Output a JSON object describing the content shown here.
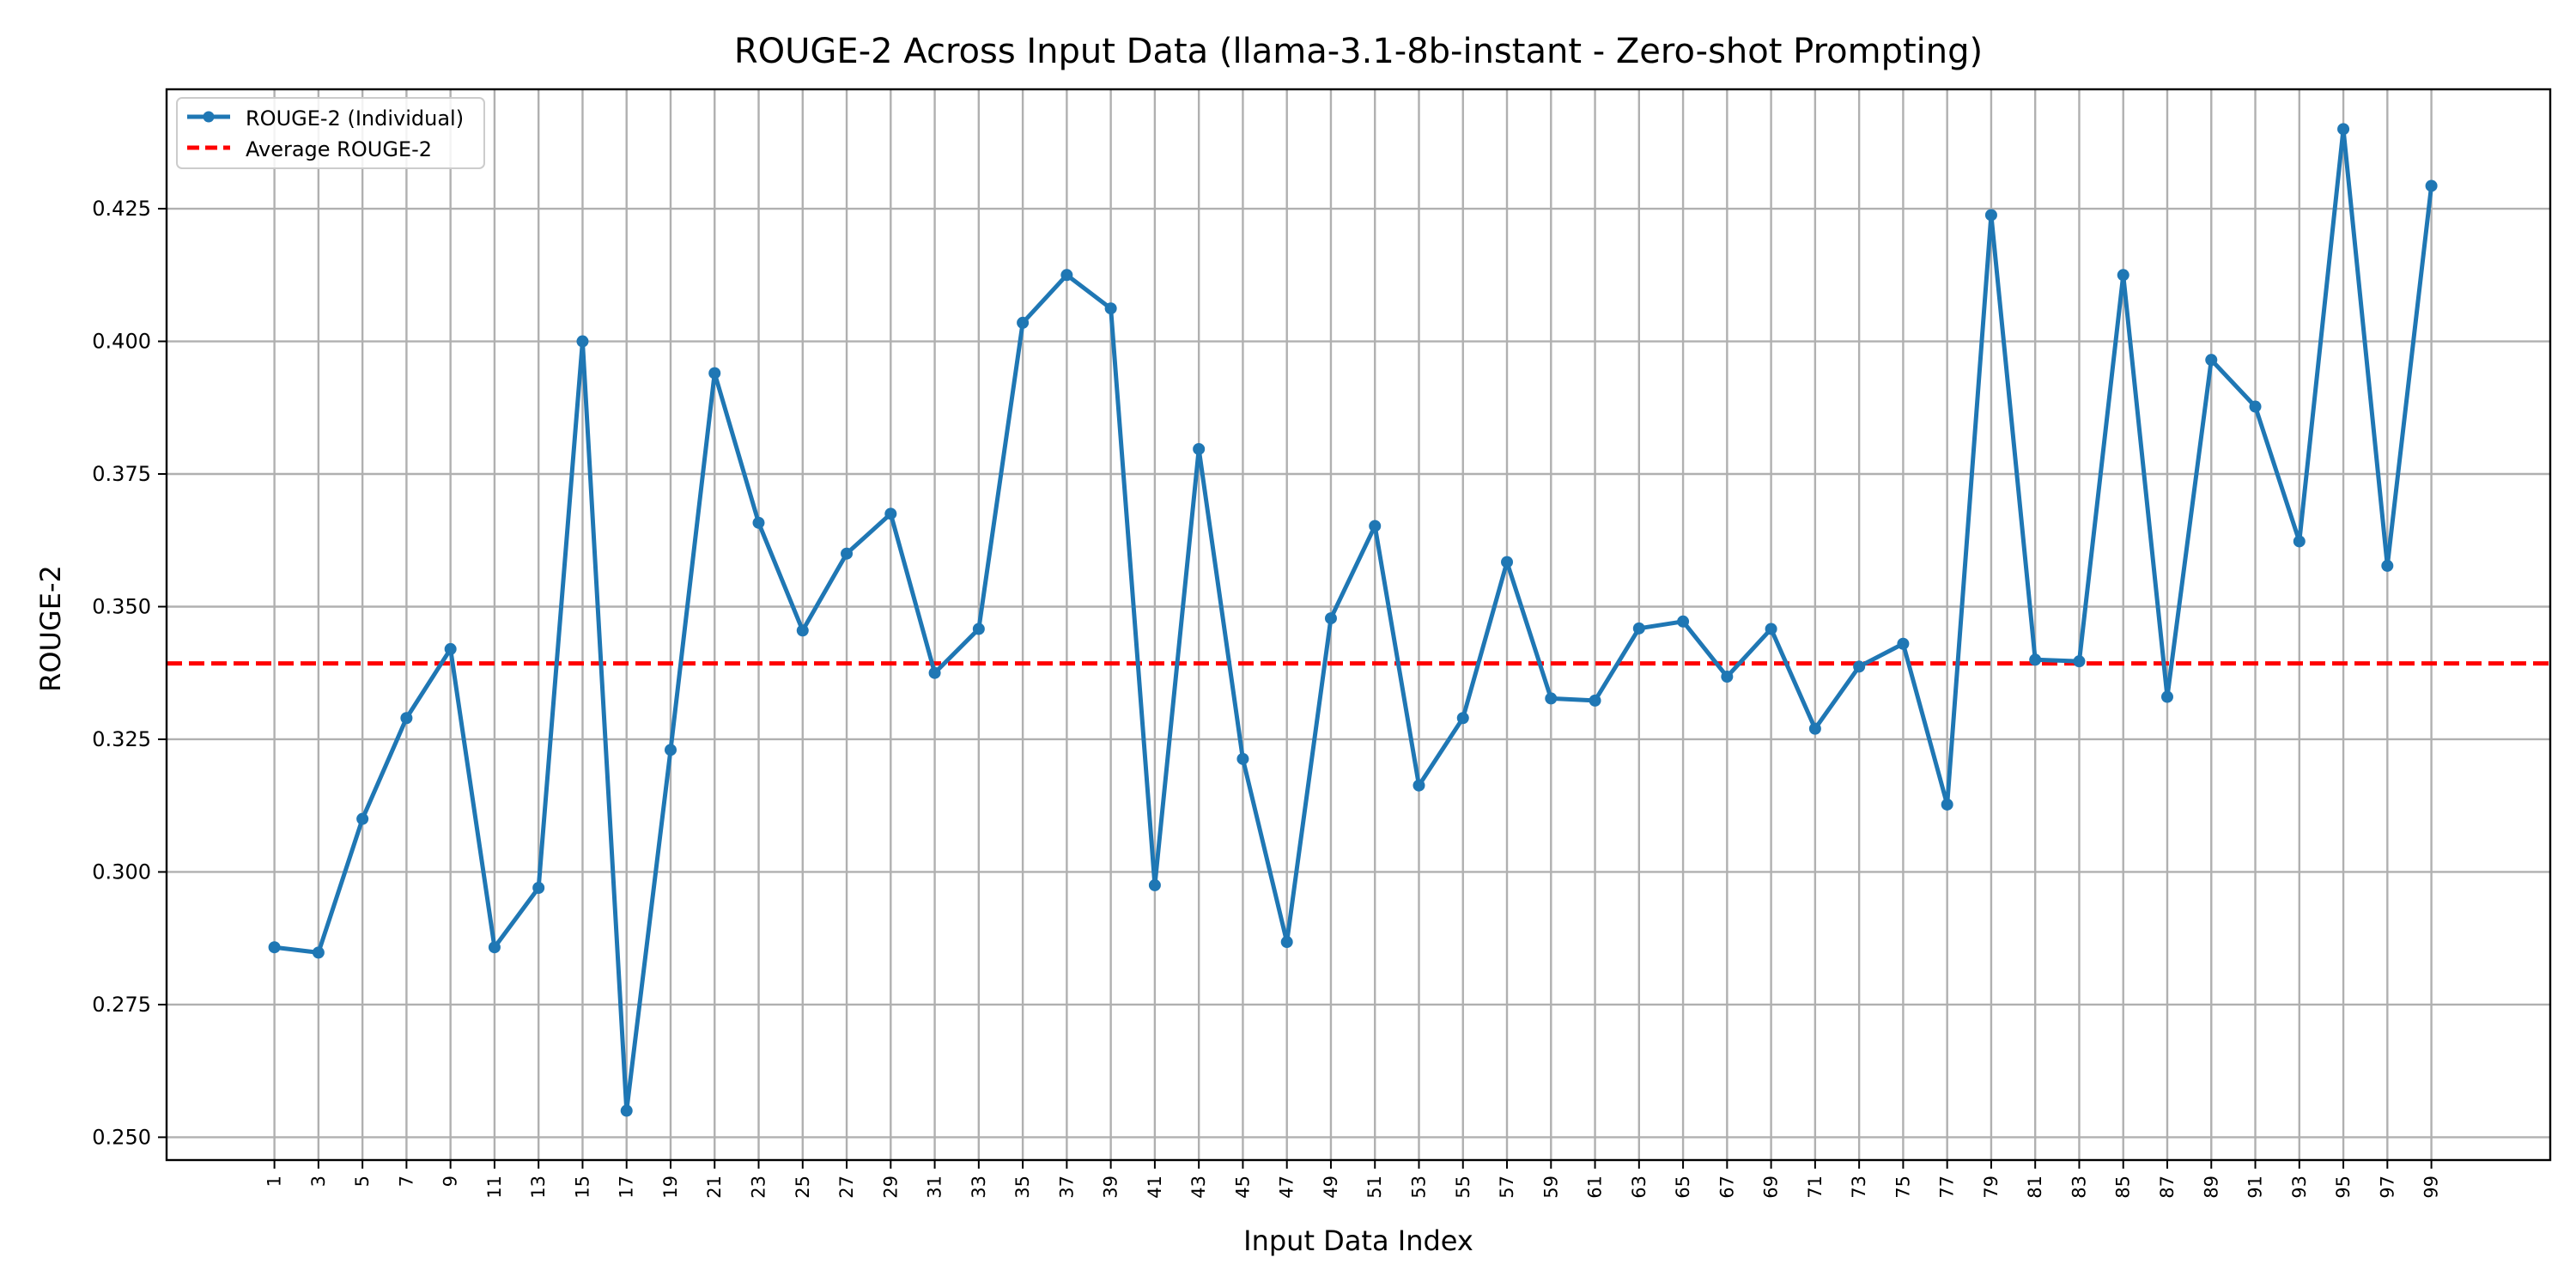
{
  "chart_data": {
    "type": "line",
    "title": "ROUGE-2 Across Input Data (llama-3.1-8b-instant - Zero-shot Prompting)",
    "xlabel": "Input Data Index",
    "ylabel": "ROUGE-2",
    "x": [
      1,
      3,
      5,
      7,
      9,
      11,
      13,
      15,
      17,
      19,
      21,
      23,
      25,
      27,
      29,
      31,
      33,
      35,
      37,
      39,
      41,
      43,
      45,
      47,
      49,
      51,
      53,
      55,
      57,
      59,
      61,
      63,
      65,
      67,
      69,
      71,
      73,
      75,
      77,
      79,
      81,
      83,
      85,
      87,
      89,
      91,
      93,
      95,
      97,
      99
    ],
    "x_tick_labels": [
      "1",
      "3",
      "5",
      "7",
      "9",
      "11",
      "13",
      "15",
      "17",
      "19",
      "21",
      "23",
      "25",
      "27",
      "29",
      "31",
      "33",
      "35",
      "37",
      "39",
      "41",
      "43",
      "45",
      "47",
      "49",
      "51",
      "53",
      "55",
      "57",
      "59",
      "61",
      "63",
      "65",
      "67",
      "69",
      "71",
      "73",
      "75",
      "77",
      "79",
      "81",
      "83",
      "85",
      "87",
      "89",
      "91",
      "93",
      "95",
      "97",
      "99"
    ],
    "y_ticks": [
      0.25,
      0.275,
      0.3,
      0.325,
      0.35,
      0.375,
      0.4,
      0.425
    ],
    "y_tick_labels": [
      "0.250",
      "0.275",
      "0.300",
      "0.325",
      "0.350",
      "0.375",
      "0.400",
      "0.425"
    ],
    "xlim": [
      -3.9,
      104.4
    ],
    "ylim": [
      0.2457,
      0.4475
    ],
    "grid": true,
    "legend_position": "top-left",
    "series": [
      {
        "name": "ROUGE-2 (Individual)",
        "color": "#1f77b4",
        "style": "solid-with-markers",
        "values": [
          0.2858,
          0.2848,
          0.31,
          0.329,
          0.342,
          0.2858,
          0.297,
          0.4,
          0.255,
          0.323,
          0.394,
          0.3658,
          0.3455,
          0.36,
          0.3675,
          0.3375,
          0.3458,
          0.4035,
          0.4125,
          0.4062,
          0.2975,
          0.3797,
          0.3213,
          0.2868,
          0.3478,
          0.3652,
          0.3163,
          0.329,
          0.3584,
          0.3327,
          0.3323,
          0.3459,
          0.3472,
          0.3368,
          0.3458,
          0.327,
          0.3387,
          0.343,
          0.3127,
          0.4238,
          0.34,
          0.3397,
          0.4125,
          0.333,
          0.3965,
          0.3877,
          0.3623,
          0.44,
          0.3577,
          0.4293
        ]
      },
      {
        "name": "Average ROUGE-2",
        "color": "#ff0000",
        "style": "dashed",
        "value": 0.3393
      }
    ]
  }
}
